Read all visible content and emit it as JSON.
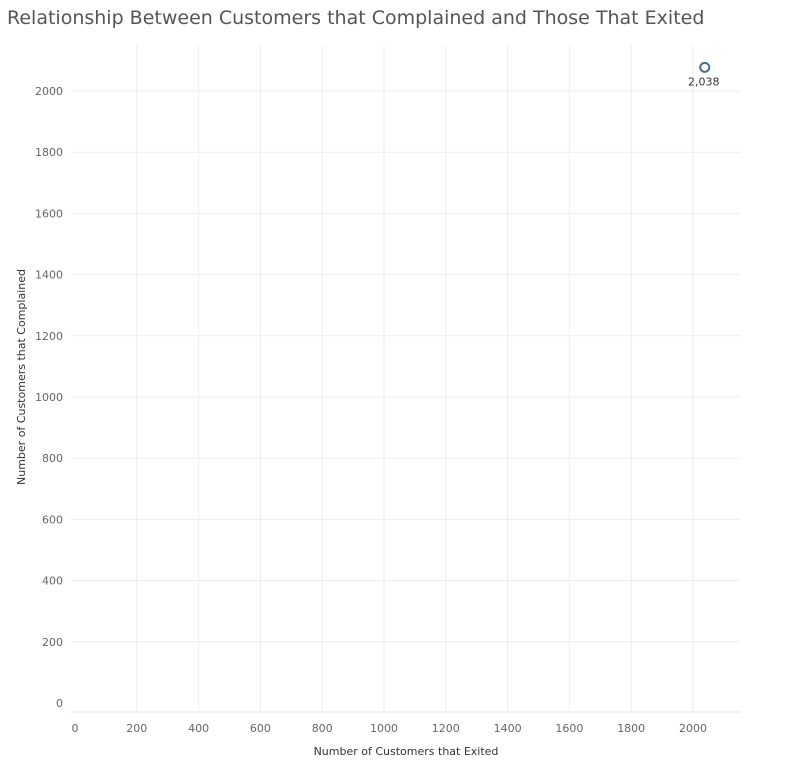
{
  "chart_data": {
    "type": "scatter",
    "title": "Relationship Between Customers that Complained and Those That Exited",
    "xlabel": "Number of Customers that Exited",
    "ylabel": "Number of Customers that Complained",
    "xlim": [
      0,
      2150
    ],
    "ylim": [
      0,
      2150
    ],
    "x_ticks": [
      0,
      200,
      400,
      600,
      800,
      1000,
      1200,
      1400,
      1600,
      1800,
      2000
    ],
    "y_ticks": [
      0,
      200,
      400,
      600,
      800,
      1000,
      1200,
      1400,
      1600,
      1800,
      2000
    ],
    "grid": true,
    "points": [
      {
        "x": 2038,
        "y": 2038,
        "label": "2,038"
      }
    ],
    "colors": {
      "marker": "#4e6e8e",
      "grid": "#eeeeee"
    }
  }
}
